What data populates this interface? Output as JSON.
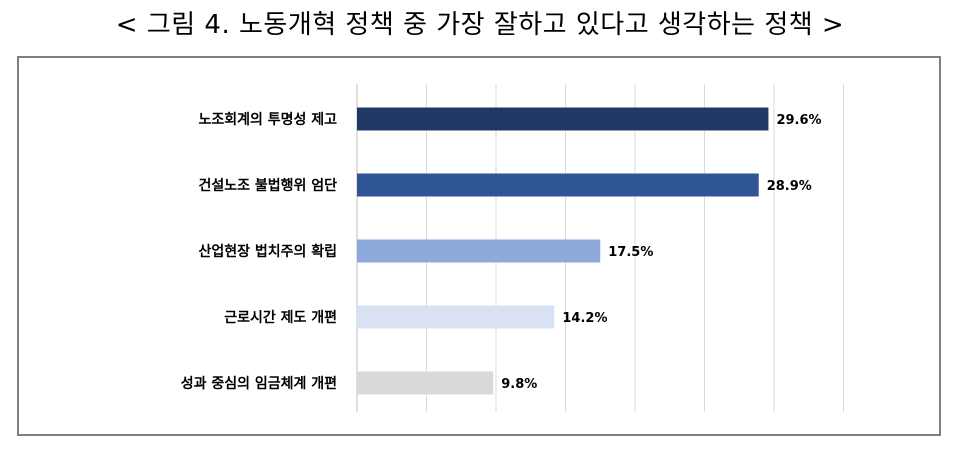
{
  "title": "< 그림 4. 노동개혁 정책 중 가장 잘하고 있다고 생각하는 정책 >",
  "chart_data": {
    "type": "bar",
    "orientation": "horizontal",
    "categories": [
      "노조회계의 투명성 제고",
      "건설노조 불법행위 엄단",
      "산업현장 법치주의 확립",
      "근로시간 제도 개편",
      "성과 중심의 임금체계 개편"
    ],
    "values": [
      29.6,
      28.9,
      17.5,
      14.2,
      9.8
    ],
    "value_labels": [
      "29.6%",
      "28.9%",
      "17.5%",
      "14.2%",
      "9.8%"
    ],
    "bar_colors": [
      "#1f3864",
      "#2f5597",
      "#8eaadb",
      "#d9e2f3",
      "#d9d9d9"
    ],
    "xlim": [
      0,
      35
    ],
    "grid": true,
    "title": "",
    "xlabel": "",
    "ylabel": ""
  }
}
